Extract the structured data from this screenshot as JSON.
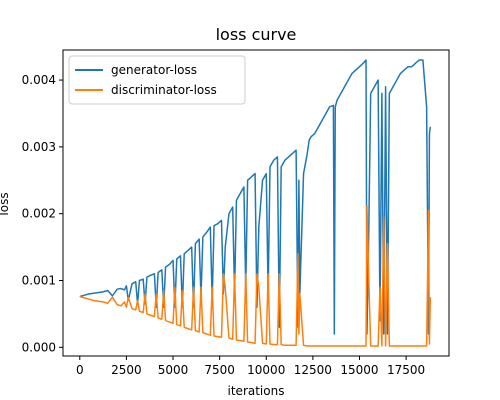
{
  "chart_data": {
    "type": "line",
    "title": "loss curve",
    "xlabel": "iterations",
    "ylabel": "loss",
    "xlim": [
      -900,
      19800
    ],
    "ylim": [
      -0.00013,
      0.00445
    ],
    "xticks": [
      0,
      2500,
      5000,
      7500,
      10000,
      12500,
      15000,
      17500
    ],
    "xtick_labels": [
      "0",
      "2500",
      "5000",
      "7500",
      "10000",
      "12500",
      "15000",
      "17500"
    ],
    "yticks": [
      0.0,
      0.001,
      0.002,
      0.003,
      0.004
    ],
    "ytick_labels": [
      "0.000",
      "0.001",
      "0.002",
      "0.003",
      "0.004"
    ],
    "grid": false,
    "legend_position": "top-left",
    "series": [
      {
        "name": "generator-loss",
        "color": "#1f77b4",
        "x": [
          0,
          250,
          500,
          750,
          1000,
          1250,
          1500,
          1750,
          2000,
          2200,
          2400,
          2500,
          2600,
          2800,
          3000,
          3100,
          3200,
          3400,
          3500,
          3600,
          3800,
          4000,
          4100,
          4200,
          4400,
          4500,
          4600,
          4800,
          5000,
          5100,
          5200,
          5400,
          5500,
          5600,
          5800,
          6000,
          6100,
          6200,
          6400,
          6500,
          6600,
          6800,
          7000,
          7100,
          7200,
          7400,
          7600,
          7700,
          7800,
          8000,
          8200,
          8300,
          8400,
          8600,
          8800,
          8900,
          9000,
          9200,
          9400,
          9500,
          9600,
          9800,
          10000,
          10100,
          10200,
          10400,
          10600,
          10700,
          10800,
          11000,
          11200,
          11400,
          11600,
          11700,
          11750,
          11800,
          12000,
          12200,
          12300,
          12400,
          12600,
          12800,
          13000,
          13200,
          13400,
          13600,
          13650,
          13700,
          13800,
          14000,
          14200,
          14400,
          14600,
          14800,
          15000,
          15200,
          15350,
          15400,
          15500,
          15600,
          15800,
          16000,
          16100,
          16200,
          16300,
          16400,
          16500,
          16600,
          16800,
          17000,
          17200,
          17400,
          17600,
          17800,
          18000,
          18200,
          18400,
          18600,
          18700,
          18750,
          18800
        ],
        "y": [
          0.00076,
          0.00078,
          0.0008,
          0.00081,
          0.00082,
          0.00083,
          0.00085,
          0.00077,
          0.00087,
          0.00088,
          0.00086,
          0.00092,
          0.0007,
          0.00095,
          0.00098,
          0.00065,
          0.001,
          0.00102,
          0.00065,
          0.00105,
          0.00108,
          0.0011,
          0.0006,
          0.00112,
          0.00116,
          0.0006,
          0.0012,
          0.00124,
          0.0013,
          0.0006,
          0.00132,
          0.00137,
          0.0006,
          0.0014,
          0.00145,
          0.0015,
          0.0006,
          0.00155,
          0.00162,
          0.00075,
          0.00165,
          0.00172,
          0.0018,
          0.0007,
          0.00182,
          0.00185,
          0.0019,
          0.0008,
          0.0015,
          0.002,
          0.0021,
          0.0008,
          0.0022,
          0.0023,
          0.0024,
          0.0009,
          0.0025,
          0.00255,
          0.0026,
          0.0006,
          0.0018,
          0.0025,
          0.0026,
          0.0008,
          0.0027,
          0.0028,
          0.00285,
          0.0003,
          0.0027,
          0.0028,
          0.00285,
          0.0029,
          0.00295,
          0.0003,
          0.0025,
          0.0008,
          0.0026,
          0.0029,
          0.0031,
          0.00315,
          0.0032,
          0.0033,
          0.0034,
          0.0035,
          0.0036,
          0.00362,
          0.0002,
          0.0036,
          0.0037,
          0.0038,
          0.0039,
          0.004,
          0.0041,
          0.00415,
          0.0042,
          0.00425,
          0.0043,
          0.0002,
          0.0018,
          0.0038,
          0.0039,
          0.004,
          0.0004,
          0.0038,
          0.0002,
          0.0039,
          0.0002,
          0.0038,
          0.0039,
          0.004,
          0.0041,
          0.00415,
          0.0042,
          0.0042,
          0.00425,
          0.0043,
          0.0043,
          0.0036,
          0.0002,
          0.0032,
          0.0033
        ]
      },
      {
        "name": "discriminator-loss",
        "color": "#ff7f0e",
        "x": [
          0,
          250,
          500,
          750,
          1000,
          1250,
          1500,
          1750,
          2000,
          2200,
          2400,
          2500,
          2600,
          2800,
          3000,
          3100,
          3200,
          3400,
          3500,
          3600,
          3800,
          4000,
          4100,
          4200,
          4400,
          4500,
          4600,
          4800,
          5000,
          5100,
          5200,
          5400,
          5500,
          5600,
          5800,
          6000,
          6100,
          6200,
          6400,
          6500,
          6600,
          6800,
          7000,
          7100,
          7200,
          7400,
          7600,
          7700,
          7800,
          8000,
          8200,
          8300,
          8400,
          8600,
          8800,
          8900,
          9000,
          9200,
          9400,
          9500,
          9600,
          9800,
          10000,
          10100,
          10200,
          10400,
          10600,
          10700,
          10800,
          11000,
          11200,
          11400,
          11600,
          11700,
          11750,
          11800,
          12000,
          12200,
          12300,
          12400,
          12600,
          12800,
          13000,
          13200,
          13400,
          13600,
          13650,
          13700,
          13800,
          14000,
          14200,
          14400,
          14600,
          14800,
          15000,
          15200,
          15350,
          15400,
          15500,
          15600,
          15800,
          16000,
          16100,
          16200,
          16300,
          16400,
          16500,
          16600,
          16800,
          17000,
          17200,
          17400,
          17600,
          17800,
          18000,
          18200,
          18400,
          18600,
          18700,
          18750,
          18800
        ],
        "y": [
          0.00076,
          0.00074,
          0.00072,
          0.0007,
          0.00069,
          0.00068,
          0.00066,
          0.00075,
          0.00064,
          0.00062,
          0.00068,
          0.0006,
          0.00075,
          0.00058,
          0.00056,
          0.0007,
          0.00054,
          0.00052,
          0.0008,
          0.0005,
          0.00048,
          0.00046,
          0.0008,
          0.00044,
          0.00042,
          0.00085,
          0.0004,
          0.00038,
          0.00036,
          0.0009,
          0.00034,
          0.00032,
          0.00085,
          0.0003,
          0.00028,
          0.00026,
          0.0009,
          0.00025,
          0.00023,
          0.0009,
          0.00022,
          0.0002,
          0.00018,
          0.0009,
          0.00017,
          0.00016,
          0.00015,
          0.0011,
          0.0009,
          0.00014,
          0.00012,
          0.0011,
          0.00011,
          0.0001,
          9e-05,
          0.0011,
          8e-05,
          7e-05,
          6e-05,
          0.0011,
          0.0009,
          6e-05,
          5e-05,
          0.0011,
          5e-05,
          4e-05,
          4e-05,
          0.0011,
          4e-05,
          3e-05,
          3e-05,
          3e-05,
          3e-05,
          0.0014,
          0.0002,
          0.0008,
          3e-05,
          2e-05,
          2e-05,
          2e-05,
          2e-05,
          2e-05,
          2e-05,
          2e-05,
          2e-05,
          2e-05,
          2e-05,
          2e-05,
          2e-05,
          2e-05,
          2e-05,
          2e-05,
          2e-05,
          2e-05,
          2e-05,
          2e-05,
          2e-05,
          0.00212,
          0.001,
          2e-05,
          2e-05,
          2e-05,
          0.0009,
          2e-05,
          0.00195,
          2e-05,
          0.00155,
          2e-05,
          2e-05,
          2e-05,
          2e-05,
          2e-05,
          2e-05,
          2e-05,
          2e-05,
          2e-05,
          2e-05,
          2e-05,
          0.00205,
          5e-05,
          0.00075
        ]
      }
    ]
  }
}
